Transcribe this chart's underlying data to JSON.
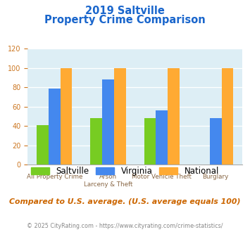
{
  "title_line1": "2019 Saltville",
  "title_line2": "Property Crime Comparison",
  "cat_labels_line1": [
    "All Property Crime",
    "Arson",
    "Motor Vehicle Theft",
    "Burglary"
  ],
  "cat_labels_line2": [
    "",
    "Larceny & Theft",
    "",
    ""
  ],
  "saltville": [
    41,
    48,
    48,
    0
  ],
  "virginia": [
    79,
    88,
    56,
    48
  ],
  "national": [
    100,
    100,
    100,
    100
  ],
  "colors": {
    "saltville": "#77cc22",
    "virginia": "#4488ee",
    "national": "#ffaa33"
  },
  "ylim": [
    0,
    120
  ],
  "yticks": [
    0,
    20,
    40,
    60,
    80,
    100,
    120
  ],
  "title_color": "#1a66cc",
  "bg_color": "#ddeef5",
  "footer_text": "Compared to U.S. average. (U.S. average equals 100)",
  "copyright_text": "© 2025 CityRating.com - https://www.cityrating.com/crime-statistics/",
  "footer_color": "#cc6600",
  "copyright_color": "#888888",
  "ytick_color": "#cc7722",
  "xtick_color": "#886644"
}
